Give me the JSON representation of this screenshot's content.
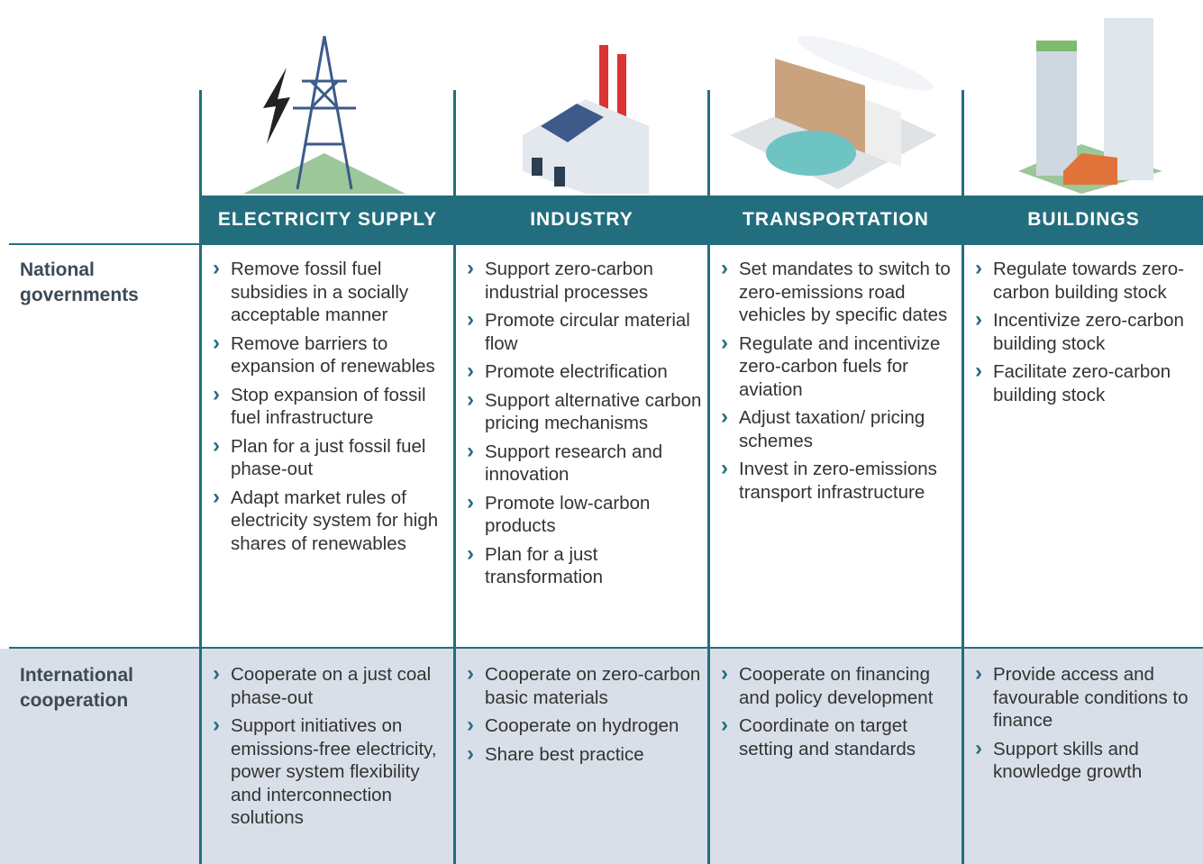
{
  "table": {
    "columns": [
      "ELECTRICITY SUPPLY",
      "INDUSTRY",
      "TRANSPORTATION",
      "BUILDINGS"
    ],
    "rows": [
      {
        "label": "National governments",
        "cells": [
          [
            "Remove fossil fuel subsidies in a socially acceptable manner",
            "Remove barriers to expansion of renewables",
            "Stop expansion of fossil fuel infrastructure",
            "Plan for a just fossil fuel phase-out",
            "Adapt market rules of electricity system for high shares of renewables"
          ],
          [
            "Support zero-carbon industrial processes",
            "Promote circular material flow",
            "Promote electrification",
            "Support alternative carbon pricing mechanisms",
            "Support research and innovation",
            "Promote low-carbon products",
            "Plan for a just transformation"
          ],
          [
            "Set mandates to switch to zero-emissions road vehicles by specific dates",
            "Regulate and incentivize zero-carbon fuels for aviation",
            "Adjust taxation/ pricing schemes",
            "Invest in zero-emissions transport infrastructure"
          ],
          [
            "Regulate towards zero-carbon building stock",
            "Incentivize zero-carbon building stock",
            "Facilitate zero-carbon building stock"
          ]
        ]
      },
      {
        "label": "International cooperation",
        "cells": [
          [
            "Cooperate on a just coal phase-out",
            "Support initiatives on emissions-free electricity, power system flexibility and interconnection solutions"
          ],
          [
            "Cooperate on zero-carbon basic materials",
            "Cooperate on hydrogen",
            "Share best practice"
          ],
          [
            "Cooperate on financing and policy development",
            "Coordinate on target setting and standards"
          ],
          [
            "Provide access and favourable conditions to finance",
            "Support skills and knowledge growth"
          ]
        ]
      }
    ]
  }
}
